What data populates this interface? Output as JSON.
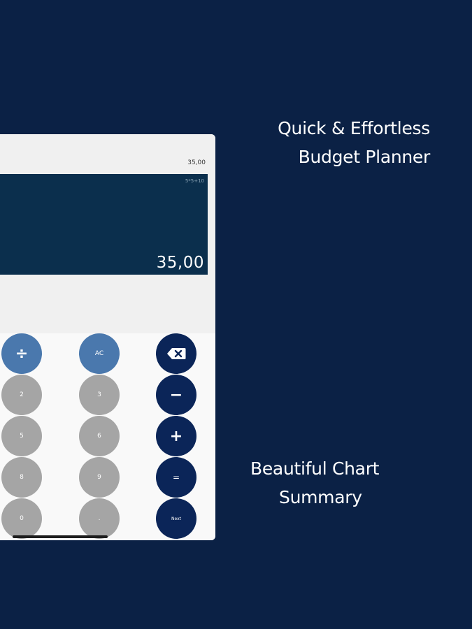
{
  "promo": {
    "top_line1": "Quick & Effortless",
    "top_line2": "Budget Planner",
    "bottom_line1": "Beautiful Chart",
    "bottom_line2": "Summary"
  },
  "calculator": {
    "top_total": "35,00",
    "expression": "5*5+10",
    "result": "35,00",
    "keys": {
      "divide": "÷",
      "clear": "AC",
      "backspace_icon": "backspace-icon",
      "k2": "2",
      "k3": "3",
      "minus": "−",
      "k5": "5",
      "k6": "6",
      "plus": "+",
      "k8": "8",
      "k9": "9",
      "equals": "=",
      "k0": "0",
      "dot": ".",
      "next": "Next"
    }
  },
  "colors": {
    "background": "#0b2145",
    "display": "#0b2f4d",
    "grey_key": "#a5a5a5",
    "blue_key": "#4a78ad",
    "navy_key": "#0b2558"
  }
}
